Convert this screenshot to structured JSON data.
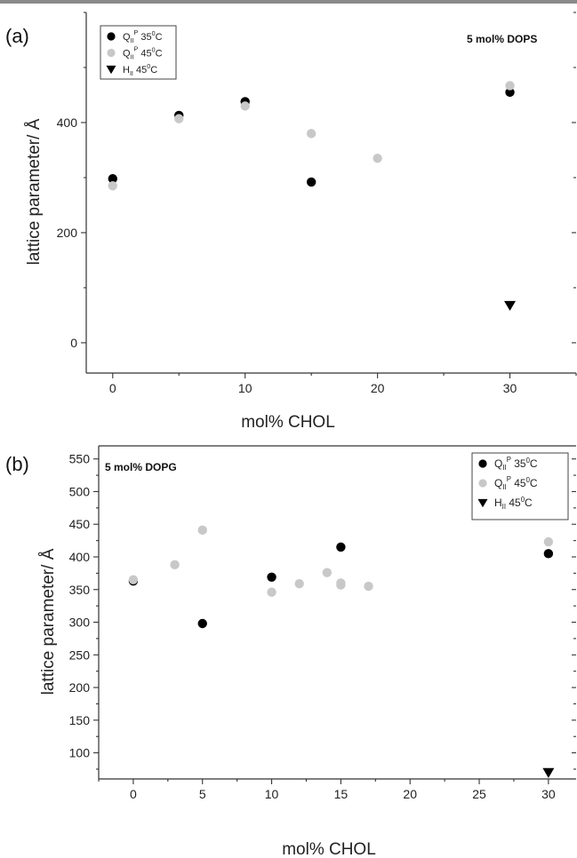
{
  "chart_data": [
    {
      "panel_label": "(a)",
      "type": "scatter",
      "annotation": "5 mol% DOPS",
      "xlabel": "mol% CHOL",
      "ylabel": "lattice parameter/ Å",
      "xlim": [
        -2,
        35
      ],
      "ylim": [
        -55,
        600
      ],
      "xticks": [
        0,
        10,
        20,
        30
      ],
      "xtick_labels": [
        "0",
        "10",
        "20",
        "30"
      ],
      "yticks": [
        0,
        200,
        400
      ],
      "ytick_labels": [
        "0",
        "200",
        "400"
      ],
      "legend_position": "top-left",
      "series": [
        {
          "name": "QII P 35°C",
          "legend": {
            "main": "Q",
            "sub": "II",
            "sup": "P",
            "tail": " 35",
            "deg": "0",
            "unit": "C"
          },
          "color": "#000000",
          "marker": "circle",
          "x": [
            0,
            5,
            10,
            15,
            30
          ],
          "y": [
            298,
            413,
            438,
            292,
            455
          ]
        },
        {
          "name": "QII P 45°C",
          "legend": {
            "main": "Q",
            "sub": "II",
            "sup": "P",
            "tail": " 45",
            "deg": "0",
            "unit": "C"
          },
          "color": "#c8c8c8",
          "marker": "circle",
          "x": [
            0,
            5,
            10,
            15,
            20,
            30
          ],
          "y": [
            285,
            407,
            430,
            380,
            335,
            467
          ]
        },
        {
          "name": "HII 45°C",
          "legend": {
            "main": "H",
            "sub": "II",
            "sup": "",
            "tail": " 45",
            "deg": "0",
            "unit": "C"
          },
          "color": "#000000",
          "marker": "triangle-down",
          "x": [
            30
          ],
          "y": [
            68
          ]
        }
      ]
    },
    {
      "panel_label": "(b)",
      "type": "scatter",
      "annotation": "5 mol% DOPG",
      "xlabel": "mol% CHOL",
      "ylabel": "lattice parameter/ Å",
      "xlim": [
        -2.5,
        32
      ],
      "ylim": [
        60,
        570
      ],
      "xticks": [
        0,
        5,
        10,
        15,
        20,
        25,
        30
      ],
      "xtick_labels": [
        "0",
        "5",
        "10",
        "15",
        "20",
        "25",
        "30"
      ],
      "yticks": [
        100,
        150,
        200,
        250,
        300,
        350,
        400,
        450,
        500,
        550
      ],
      "ytick_labels": [
        "100",
        "150",
        "200",
        "250",
        "300",
        "350",
        "400",
        "450",
        "500",
        "550"
      ],
      "legend_position": "top-right",
      "series": [
        {
          "name": "QII P 35°C",
          "legend": {
            "main": "Q",
            "sub": "II",
            "sup": "P",
            "tail": " 35",
            "deg": "0",
            "unit": "C"
          },
          "color": "#000000",
          "marker": "circle",
          "x": [
            0,
            5,
            10,
            15,
            30
          ],
          "y": [
            363,
            298,
            369,
            415,
            405
          ]
        },
        {
          "name": "QII P 45°C",
          "legend": {
            "main": "Q",
            "sub": "II",
            "sup": "P",
            "tail": " 45",
            "deg": "0",
            "unit": "C"
          },
          "color": "#c8c8c8",
          "marker": "circle",
          "x": [
            0,
            3,
            5,
            10,
            12,
            14,
            15,
            15,
            17,
            30
          ],
          "y": [
            365,
            388,
            441,
            346,
            359,
            376,
            360,
            357,
            355,
            423
          ]
        },
        {
          "name": "HII 45°C",
          "legend": {
            "main": "H",
            "sub": "II",
            "sup": "",
            "tail": " 45",
            "deg": "0",
            "unit": "C"
          },
          "color": "#000000",
          "marker": "triangle-down",
          "x": [
            30
          ],
          "y": [
            70
          ]
        }
      ]
    }
  ]
}
